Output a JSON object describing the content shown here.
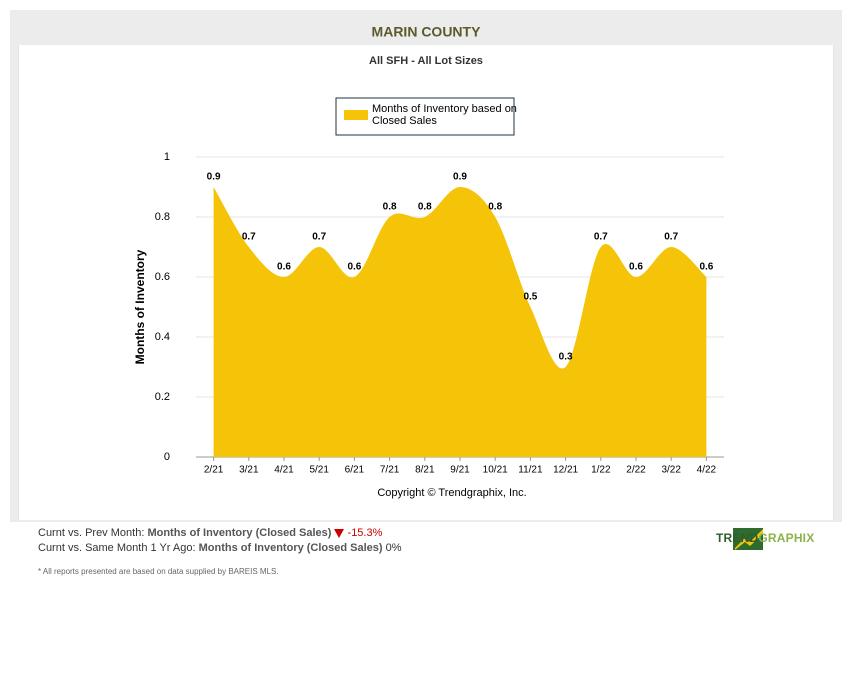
{
  "chart_data": {
    "type": "area",
    "title": "MARIN COUNTY",
    "subtitle": "All SFH - All Lot Sizes",
    "y_label": "Months of Inventory",
    "copyright": "Copyright © Trendgraphix, Inc.",
    "categories": [
      "2/21",
      "3/21",
      "4/21",
      "5/21",
      "6/21",
      "7/21",
      "8/21",
      "9/21",
      "10/21",
      "11/21",
      "12/21",
      "1/22",
      "2/22",
      "3/22",
      "4/22"
    ],
    "series": [
      {
        "name": "Months of Inventory based on Closed Sales",
        "color": "#f5c307",
        "values": [
          0.9,
          0.7,
          0.6,
          0.7,
          0.6,
          0.8,
          0.8,
          0.9,
          0.8,
          0.5,
          0.3,
          0.7,
          0.6,
          0.7,
          0.6
        ]
      }
    ],
    "ylim": [
      0,
      1
    ],
    "yticks": [
      0,
      0.2,
      0.4,
      0.6,
      0.8,
      1
    ],
    "grid": true,
    "legend": "top"
  },
  "footer": {
    "rows": [
      {
        "label": "Curnt vs. Prev Month:",
        "metric": "Months of Inventory (Closed Sales)",
        "change": "-15.3%"
      },
      {
        "label": "Curnt vs. Same Month 1 Yr Ago:",
        "metric": "Months of Inventory (Closed Sales)",
        "change": "0%"
      }
    ],
    "note": "* All reports presented are based on data supplied by BAREIS MLS.",
    "logo": [
      "TREND",
      "GRAPHIX"
    ]
  }
}
